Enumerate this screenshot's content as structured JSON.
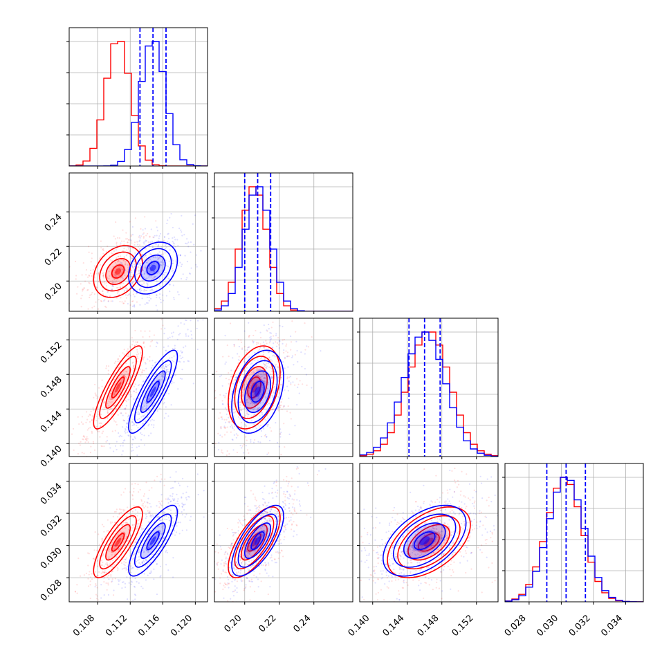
{
  "chart_data": {
    "type": "scatter",
    "kind": "corner",
    "grid": true,
    "parameters": [
      {
        "ticks": [
          0.108,
          0.112,
          0.116,
          0.12
        ],
        "tick_labels": [
          "0.108",
          "0.112",
          "0.116",
          "0.120"
        ],
        "range": [
          0.1045,
          0.1215
        ]
      },
      {
        "ticks": [
          0.2,
          0.22,
          0.24
        ],
        "tick_labels": [
          "0.20",
          "0.22",
          "0.24"
        ],
        "range": [
          0.1825,
          0.2625
        ]
      },
      {
        "ticks": [
          0.14,
          0.144,
          0.148,
          0.152
        ],
        "tick_labels": [
          "0.140",
          "0.144",
          "0.148",
          "0.152"
        ],
        "range": [
          0.1385,
          0.1545
        ]
      },
      {
        "ticks": [
          0.028,
          0.03,
          0.032,
          0.034
        ],
        "tick_labels": [
          "0.028",
          "0.030",
          "0.032",
          "0.034"
        ],
        "range": [
          0.0265,
          0.0351
        ]
      }
    ],
    "series": [
      {
        "color": "#ff0000",
        "mean": [
          0.1105,
          0.2055,
          0.1465,
          0.0302
        ],
        "std": [
          0.0015,
          0.0075,
          0.0024,
          0.0011
        ],
        "corr": [
          [
            1,
            0.3,
            0.85,
            0.8
          ],
          [
            0.3,
            1,
            0.35,
            0.7
          ],
          [
            0.85,
            0.35,
            1,
            0.5
          ],
          [
            0.8,
            0.7,
            0.5,
            1
          ]
        ]
      },
      {
        "color": "#0000ff",
        "mean": [
          0.1148,
          0.2075,
          0.146,
          0.0303
        ],
        "std": [
          0.0015,
          0.0075,
          0.0024,
          0.0011
        ],
        "corr": [
          [
            1,
            0.3,
            0.85,
            0.8
          ],
          [
            0.3,
            1,
            0.35,
            0.7
          ],
          [
            0.85,
            0.35,
            1,
            0.5
          ],
          [
            0.8,
            0.7,
            0.5,
            1
          ]
        ]
      }
    ],
    "quantiles": {
      "color": "#0000ff",
      "values": [
        [
          0.1132,
          0.1148,
          0.1164
        ],
        [
          0.2,
          0.2075,
          0.215
        ],
        [
          0.1442,
          0.146,
          0.1478
        ],
        [
          0.0291,
          0.0303,
          0.0315
        ]
      ]
    }
  }
}
